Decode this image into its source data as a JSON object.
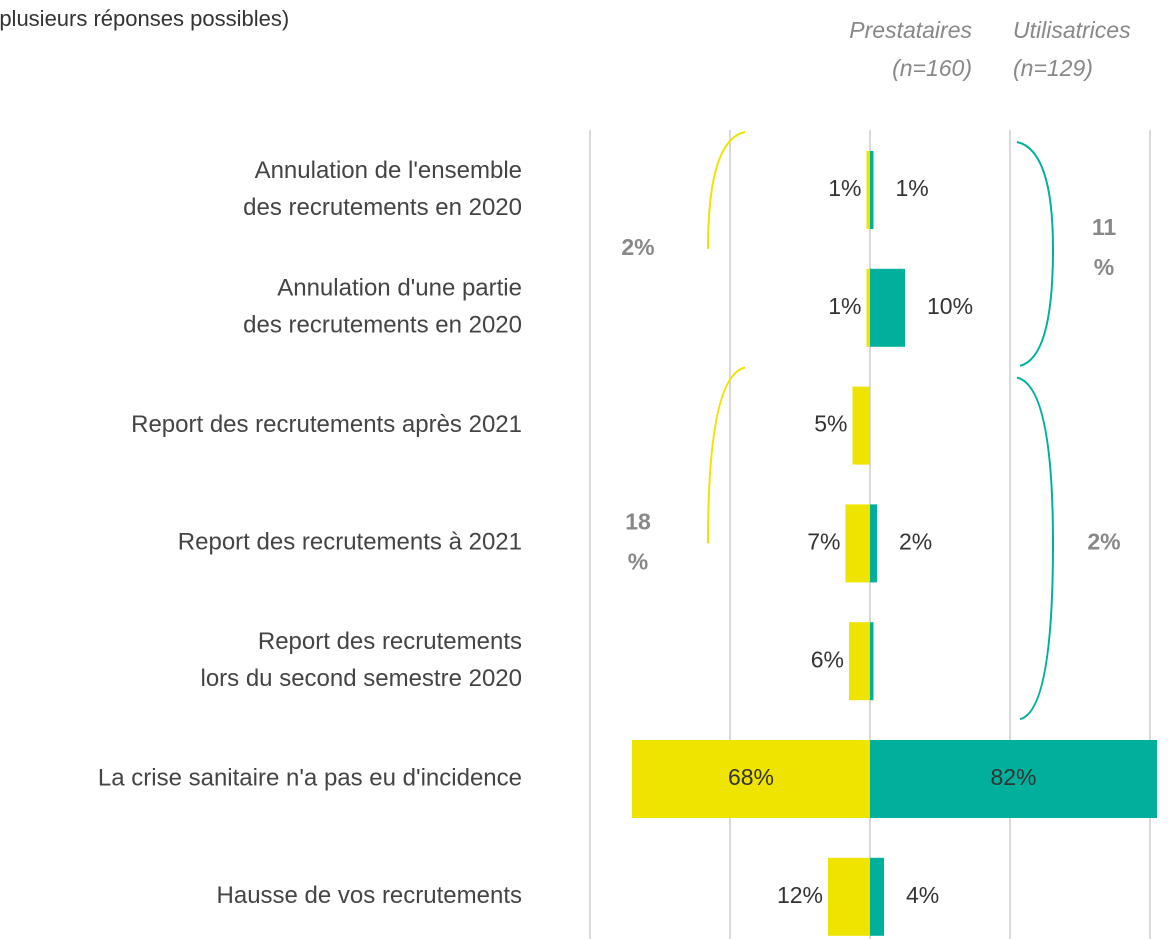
{
  "chart_data": {
    "type": "butterfly",
    "subtitle": "(plusieurs réponses possibles)",
    "categories": [
      [
        "Annulation de l'ensemble",
        "des recrutements en 2020"
      ],
      [
        "Annulation d'une partie",
        "des recrutements en 2020"
      ],
      [
        "Report des recrutements après 2021"
      ],
      [
        "Report des recrutements à 2021"
      ],
      [
        "Report des recrutements",
        "lors du second semestre 2020"
      ],
      [
        "La crise sanitaire n'a pas eu d'incidence"
      ],
      [
        "Hausse de vos recrutements"
      ]
    ],
    "series": [
      {
        "name": "Prestataires",
        "sample": "(n=160)",
        "color": "#efe300",
        "side": "left",
        "values": [
          1,
          1,
          5,
          7,
          6,
          68,
          12
        ],
        "value_labels": [
          "1%",
          "1%",
          "5%",
          "7%",
          "6%",
          "68%",
          "12%"
        ]
      },
      {
        "name": "Utilisatrices",
        "sample": "(n=129)",
        "color": "#00b09c",
        "side": "right",
        "values": [
          1,
          10,
          0,
          2,
          1,
          82,
          4
        ],
        "value_labels": [
          "1%",
          "10%",
          null,
          "2%",
          null,
          "82%",
          "4%"
        ]
      }
    ],
    "groups": [
      {
        "from": 0,
        "to": 1,
        "labels": [
          [
            "2%"
          ],
          [
            "11",
            "%"
          ]
        ]
      },
      {
        "from": 2,
        "to": 4,
        "labels": [
          [
            "18",
            "%"
          ],
          [
            "2%"
          ]
        ]
      }
    ],
    "xlim": [
      -80,
      85
    ],
    "xticks": [
      -80,
      -40,
      0,
      40,
      80
    ],
    "grid": true
  }
}
